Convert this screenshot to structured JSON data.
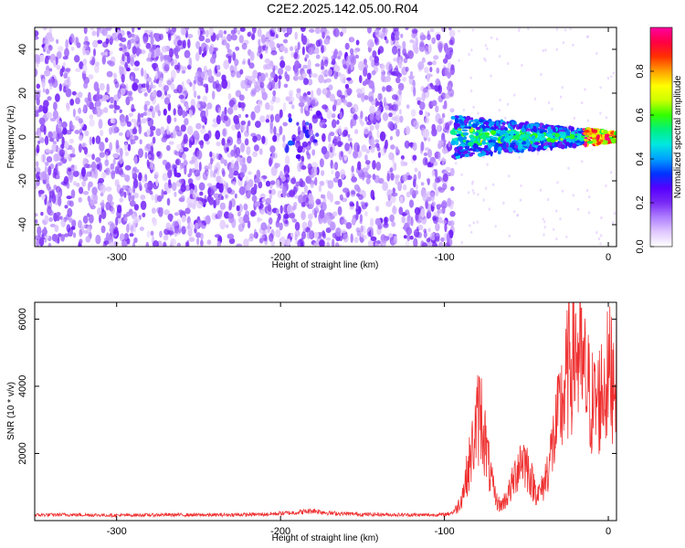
{
  "title": "C2E2.2025.142.05.00.R04",
  "colors": {
    "snr_line": "#ef3030",
    "cmap": [
      "#ffffff",
      "#e0c8ff",
      "#b080ff",
      "#7a2bf5",
      "#5500ff",
      "#0033ff",
      "#00a0ff",
      "#00e8e0",
      "#00f080",
      "#33ff00",
      "#ccff00",
      "#ffff00",
      "#ffa000",
      "#ff3000",
      "#ff0044",
      "#ff00a0"
    ]
  },
  "chart_data": [
    {
      "type": "heatmap",
      "xlabel": "Height of straight line (km)",
      "ylabel": "Frequency (Hz)",
      "xlim": [
        -350,
        5
      ],
      "ylim": [
        -50,
        50
      ],
      "xticks": [
        -300,
        -200,
        -100,
        0
      ],
      "yticks": [
        -40,
        -20,
        0,
        20,
        40
      ],
      "colorbar": {
        "label": "Normalized spectral amplitude",
        "range": [
          0.0,
          1.0
        ],
        "ticks": [
          0.0,
          0.2,
          0.4,
          0.6,
          0.8
        ]
      }
    },
    {
      "type": "line",
      "xlabel": "Height of straight line (km)",
      "ylabel": "SNR (10 * v/v)",
      "xlim": [
        -350,
        5
      ],
      "ylim": [
        0,
        6500
      ],
      "xticks": [
        -300,
        -200,
        -100,
        0
      ],
      "yticks": [
        2000,
        4000,
        6000
      ],
      "series": [
        {
          "x": [
            -350,
            -330,
            -300,
            -270,
            -240,
            -210,
            -190,
            -180,
            -170,
            -150,
            -130,
            -110,
            -100,
            -95,
            -92,
            -90,
            -88,
            -86,
            -84,
            -82,
            -80,
            -78,
            -76,
            -74,
            -72,
            -70,
            -68,
            -66,
            -64,
            -62,
            -60,
            -58,
            -56,
            -54,
            -52,
            -50,
            -48,
            -46,
            -44,
            -42,
            -40,
            -38,
            -36,
            -34,
            -32,
            -30,
            -28,
            -26,
            -24,
            -22,
            -20,
            -18,
            -16,
            -14,
            -12,
            -10,
            -8,
            -6,
            -4,
            -2,
            0,
            2,
            5
          ],
          "y": [
            180,
            190,
            170,
            185,
            180,
            200,
            260,
            320,
            240,
            200,
            190,
            180,
            190,
            260,
            450,
            700,
            1100,
            1600,
            2100,
            2700,
            3300,
            3700,
            3000,
            2200,
            1500,
            1000,
            650,
            500,
            600,
            800,
            1000,
            1300,
            1700,
            2000,
            2100,
            1900,
            1600,
            1200,
            1000,
            900,
            1100,
            1500,
            2000,
            2500,
            3000,
            3500,
            4000,
            4500,
            5200,
            5600,
            5900,
            5400,
            5000,
            4700,
            4300,
            3900,
            3900,
            4000,
            4300,
            4600,
            4800,
            5000,
            5300
          ]
        }
      ]
    }
  ]
}
